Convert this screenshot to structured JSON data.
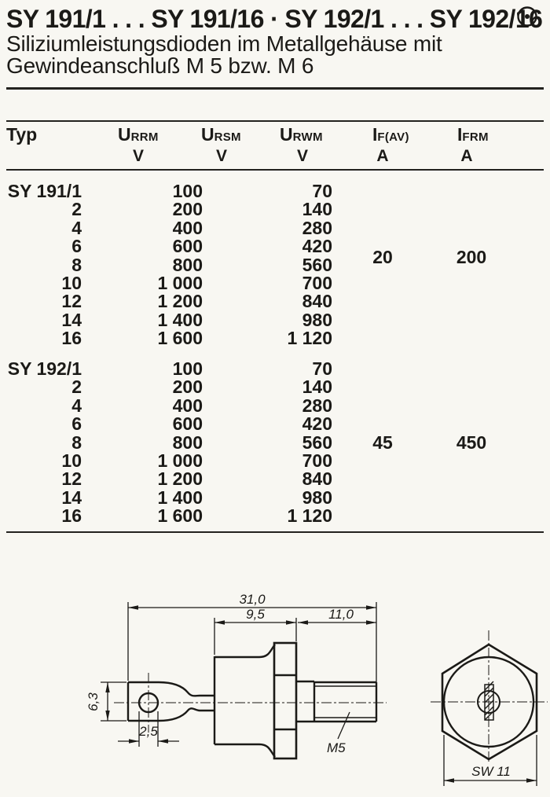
{
  "header": {
    "title": "SY 191/1 . . . SY 191/16 · SY 192/1 . . . SY 192/16",
    "subtitle_line1": "Siliziumleistungsdioden im Metallgehäuse mit",
    "subtitle_line2": "Gewindeanschluß M 5 bzw. M 6",
    "corner_symbol": "circle-dot"
  },
  "table": {
    "header": {
      "typ": "Typ",
      "cols": [
        {
          "base": "U",
          "sub": "RRM",
          "unit": "V"
        },
        {
          "base": "U",
          "sub": "RSM",
          "unit": "V"
        },
        {
          "base": "U",
          "sub": "RWM",
          "unit": "V"
        },
        {
          "base": "I",
          "sub": "F(AV)",
          "unit": "A"
        },
        {
          "base": "I",
          "sub": "FRM",
          "unit": "A"
        }
      ]
    },
    "groups": [
      {
        "rows": [
          {
            "typ": "SY 191/1",
            "urrm": "100",
            "urwm": "70"
          },
          {
            "typ": "2",
            "urrm": "200",
            "urwm": "140"
          },
          {
            "typ": "4",
            "urrm": "400",
            "urwm": "280"
          },
          {
            "typ": "6",
            "urrm": "600",
            "urwm": "420"
          },
          {
            "typ": "8",
            "urrm": "800",
            "urwm": "560"
          },
          {
            "typ": "10",
            "urrm": "1 000",
            "urwm": "700"
          },
          {
            "typ": "12",
            "urrm": "1 200",
            "urwm": "840"
          },
          {
            "typ": "14",
            "urrm": "1 400",
            "urwm": "980"
          },
          {
            "typ": "16",
            "urrm": "1 600",
            "urwm": "1 120"
          }
        ],
        "if_av": "20",
        "ifrm": "200"
      },
      {
        "rows": [
          {
            "typ": "SY 192/1",
            "urrm": "100",
            "urwm": "70"
          },
          {
            "typ": "2",
            "urrm": "200",
            "urwm": "140"
          },
          {
            "typ": "4",
            "urrm": "400",
            "urwm": "280"
          },
          {
            "typ": "6",
            "urrm": "600",
            "urwm": "420"
          },
          {
            "typ": "8",
            "urrm": "800",
            "urwm": "560"
          },
          {
            "typ": "10",
            "urrm": "1 000",
            "urwm": "700"
          },
          {
            "typ": "12",
            "urrm": "1 200",
            "urwm": "840"
          },
          {
            "typ": "14",
            "urrm": "1 400",
            "urwm": "980"
          },
          {
            "typ": "16",
            "urrm": "1 600",
            "urwm": "1 120"
          }
        ],
        "if_av": "45",
        "ifrm": "450"
      }
    ]
  },
  "drawing": {
    "dims": {
      "total_length": "31,0",
      "case_length": "9,5",
      "stud_length": "11,0",
      "lug_width": "6,3",
      "hole_diameter": "2,5",
      "thread": "M5",
      "wrench_size": "SW 11"
    }
  }
}
